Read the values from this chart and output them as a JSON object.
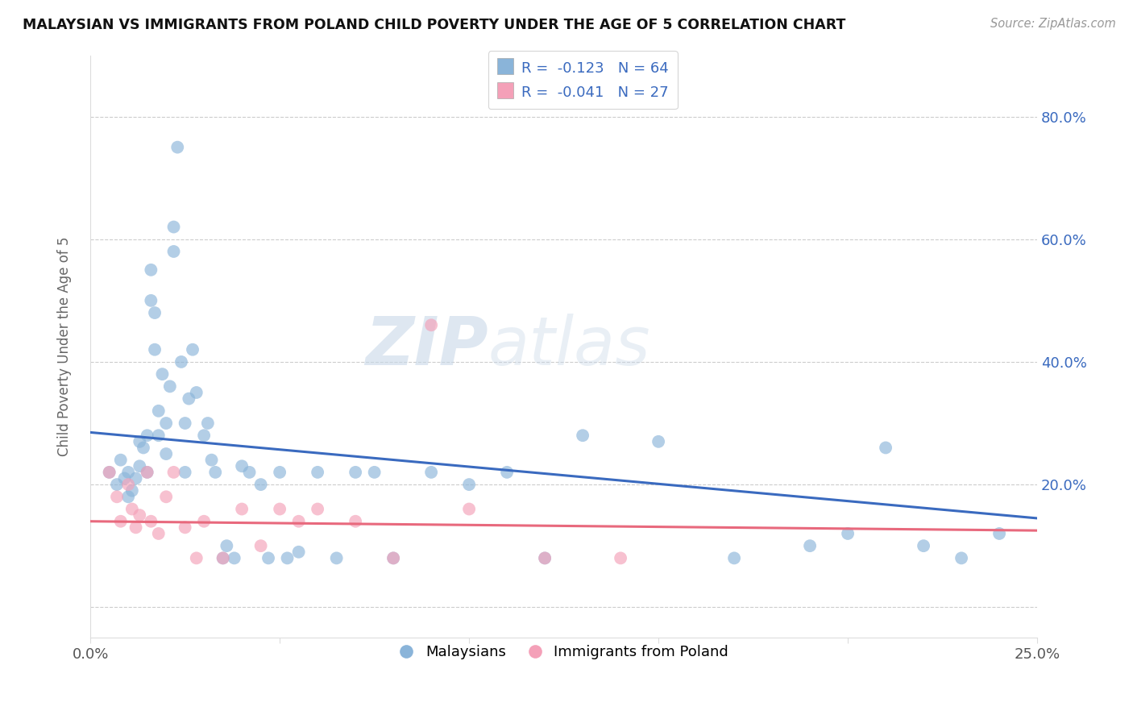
{
  "title": "MALAYSIAN VS IMMIGRANTS FROM POLAND CHILD POVERTY UNDER THE AGE OF 5 CORRELATION CHART",
  "source": "Source: ZipAtlas.com",
  "ylabel": "Child Poverty Under the Age of 5",
  "xlim": [
    0.0,
    0.25
  ],
  "ylim": [
    -0.05,
    0.9
  ],
  "xticks": [
    0.0,
    0.05,
    0.1,
    0.15,
    0.2,
    0.25
  ],
  "xtick_labels": [
    "0.0%",
    "",
    "",
    "",
    "",
    "25.0%"
  ],
  "yticks": [
    0.0,
    0.2,
    0.4,
    0.6,
    0.8
  ],
  "right_ytick_labels": [
    "",
    "20.0%",
    "40.0%",
    "60.0%",
    "80.0%"
  ],
  "blue_color": "#8ab4d9",
  "pink_color": "#f4a0b8",
  "blue_line_color": "#3a6abf",
  "pink_line_color": "#e8697d",
  "watermark_zip": "ZIP",
  "watermark_atlas": "atlas",
  "blue_scatter_x": [
    0.005,
    0.007,
    0.008,
    0.009,
    0.01,
    0.01,
    0.011,
    0.012,
    0.013,
    0.013,
    0.014,
    0.015,
    0.015,
    0.016,
    0.016,
    0.017,
    0.017,
    0.018,
    0.018,
    0.019,
    0.02,
    0.02,
    0.021,
    0.022,
    0.022,
    0.023,
    0.024,
    0.025,
    0.025,
    0.026,
    0.027,
    0.028,
    0.03,
    0.031,
    0.032,
    0.033,
    0.035,
    0.036,
    0.038,
    0.04,
    0.042,
    0.045,
    0.047,
    0.05,
    0.052,
    0.055,
    0.06,
    0.065,
    0.07,
    0.075,
    0.08,
    0.09,
    0.1,
    0.11,
    0.12,
    0.13,
    0.15,
    0.17,
    0.19,
    0.2,
    0.21,
    0.22,
    0.23,
    0.24
  ],
  "blue_scatter_y": [
    0.22,
    0.2,
    0.24,
    0.21,
    0.18,
    0.22,
    0.19,
    0.21,
    0.23,
    0.27,
    0.26,
    0.28,
    0.22,
    0.5,
    0.55,
    0.42,
    0.48,
    0.28,
    0.32,
    0.38,
    0.25,
    0.3,
    0.36,
    0.58,
    0.62,
    0.75,
    0.4,
    0.3,
    0.22,
    0.34,
    0.42,
    0.35,
    0.28,
    0.3,
    0.24,
    0.22,
    0.08,
    0.1,
    0.08,
    0.23,
    0.22,
    0.2,
    0.08,
    0.22,
    0.08,
    0.09,
    0.22,
    0.08,
    0.22,
    0.22,
    0.08,
    0.22,
    0.2,
    0.22,
    0.08,
    0.28,
    0.27,
    0.08,
    0.1,
    0.12,
    0.26,
    0.1,
    0.08,
    0.12
  ],
  "pink_scatter_x": [
    0.005,
    0.007,
    0.008,
    0.01,
    0.011,
    0.012,
    0.013,
    0.015,
    0.016,
    0.018,
    0.02,
    0.022,
    0.025,
    0.028,
    0.03,
    0.035,
    0.04,
    0.045,
    0.05,
    0.055,
    0.06,
    0.07,
    0.08,
    0.09,
    0.1,
    0.12,
    0.14
  ],
  "pink_scatter_y": [
    0.22,
    0.18,
    0.14,
    0.2,
    0.16,
    0.13,
    0.15,
    0.22,
    0.14,
    0.12,
    0.18,
    0.22,
    0.13,
    0.08,
    0.14,
    0.08,
    0.16,
    0.1,
    0.16,
    0.14,
    0.16,
    0.14,
    0.08,
    0.46,
    0.16,
    0.08,
    0.08
  ],
  "blue_line_x": [
    0.0,
    0.25
  ],
  "blue_line_y": [
    0.285,
    0.145
  ],
  "pink_line_x": [
    0.0,
    0.25
  ],
  "pink_line_y": [
    0.14,
    0.125
  ]
}
